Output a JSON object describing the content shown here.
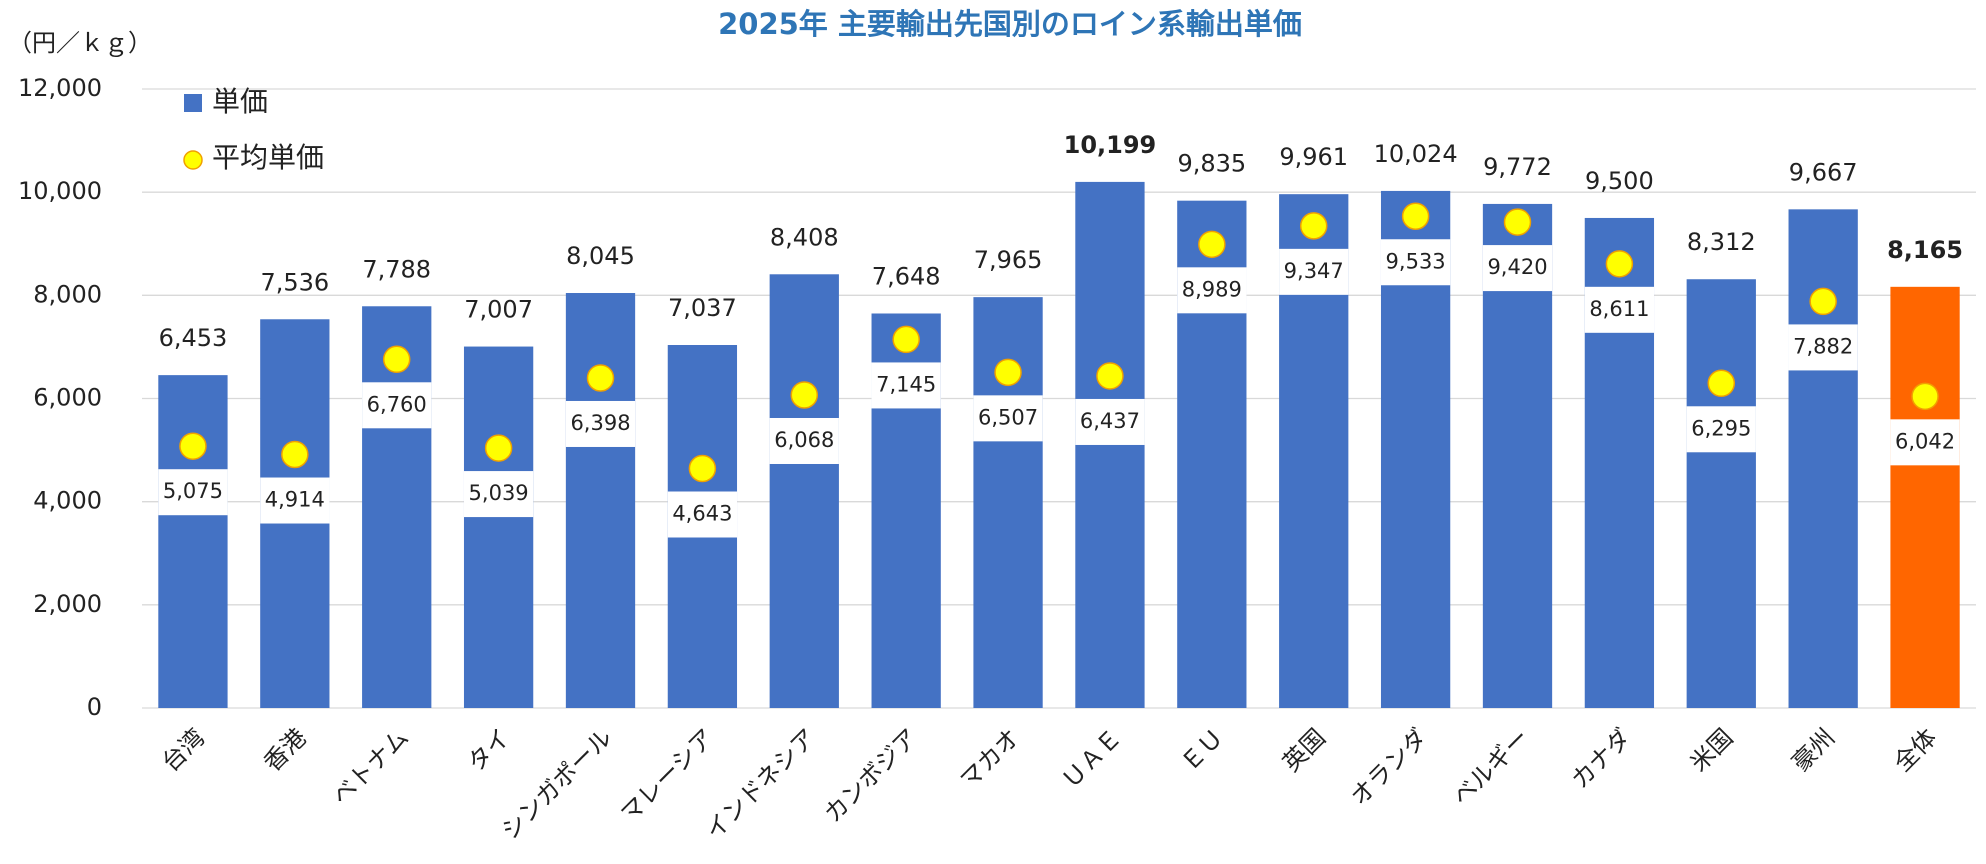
{
  "chart_data": {
    "type": "bar",
    "title": "2025年 主要輸出先国別のロイン系輸出単価",
    "y_axis_label": "（円／ｋｇ）",
    "categories": [
      "台湾",
      "香港",
      "ベトナム",
      "タイ",
      "シンガポール",
      "マレーシア",
      "インドネシア",
      "カンボジア",
      "マカオ",
      "ＵＡＥ",
      "ＥＵ",
      "英国",
      "オランダ",
      "ベルギー",
      "カナダ",
      "米国",
      "豪州",
      "全体"
    ],
    "series": [
      {
        "name": "単価",
        "color": "#4472c4",
        "colors": [
          "#4472c4",
          "#4472c4",
          "#4472c4",
          "#4472c4",
          "#4472c4",
          "#4472c4",
          "#4472c4",
          "#4472c4",
          "#4472c4",
          "#4472c4",
          "#4472c4",
          "#4472c4",
          "#4472c4",
          "#4472c4",
          "#4472c4",
          "#4472c4",
          "#4472c4",
          "#ff6600"
        ],
        "values": [
          6453,
          7536,
          7788,
          7007,
          8045,
          7037,
          8408,
          7648,
          7965,
          10199,
          9835,
          9961,
          10024,
          9772,
          9500,
          8312,
          9667,
          8165
        ],
        "value_labels": [
          "6,453",
          "7,536",
          "7,788",
          "7,007",
          "8,045",
          "7,037",
          "8,408",
          "7,648",
          "7,965",
          "10,199",
          "9,835",
          "9,961",
          "10,024",
          "9,772",
          "9,500",
          "8,312",
          "9,667",
          "8,165"
        ],
        "bold_labels": [
          9,
          17
        ]
      },
      {
        "name": "平均単価",
        "color": "#ffff00",
        "values": [
          5075,
          4914,
          6760,
          5039,
          6398,
          4643,
          6068,
          7145,
          6507,
          6437,
          8989,
          9347,
          9533,
          9420,
          8611,
          6295,
          7882,
          6042
        ],
        "value_labels": [
          "5,075",
          "4,914",
          "6,760",
          "5,039",
          "6,398",
          "4,643",
          "6,068",
          "7,145",
          "6,507",
          "6,437",
          "8,989",
          "9,347",
          "9,533",
          "9,420",
          "8,611",
          "6,295",
          "7,882",
          "6,042"
        ]
      }
    ],
    "ylim": [
      0,
      12000
    ],
    "yticks": [
      0,
      {
        "value": 2000,
        "label": "2,000"
      },
      {
        "value": 4000,
        "label": "4,000"
      },
      {
        "value": 6000,
        "label": "6,000"
      },
      {
        "value": 8000,
        "label": "8,000"
      },
      {
        "value": 10000,
        "label": "10,000"
      },
      {
        "value": 12000,
        "label": "12,000"
      }
    ],
    "grid": true,
    "legend": "upper left"
  }
}
